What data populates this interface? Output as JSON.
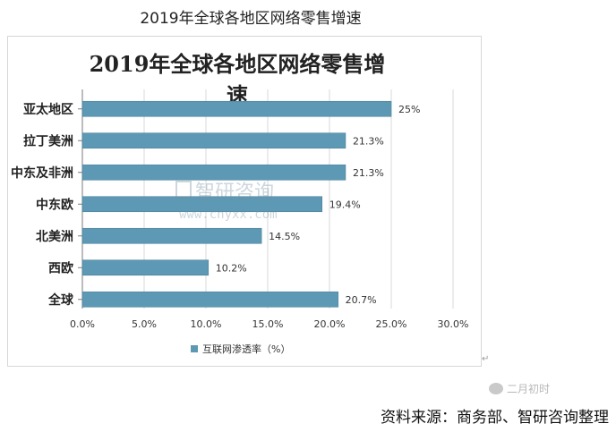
{
  "caption": "2019年全球各地区网络零售增速",
  "source_text": "资料来源：商务部、智研咨询整理",
  "watermark": {
    "brand": "智研咨询",
    "url": "www.chyxx.com"
  },
  "wechat_tag": "二月初时",
  "colors": {
    "bar": "#5d99b4",
    "bar_edge": "#4d8199",
    "grid": "#d9d9d9",
    "axis": "#7a7a7a"
  },
  "chart_data": {
    "type": "bar",
    "orientation": "horizontal",
    "title": "2019年全球各地区网络零售增速",
    "categories": [
      "亚太地区",
      "拉丁美洲",
      "中东及非洲",
      "中东欧",
      "北美洲",
      "西欧",
      "全球"
    ],
    "series": [
      {
        "name": "互联网渗透率（%）",
        "values": [
          25,
          21.3,
          21.3,
          19.4,
          14.5,
          10.2,
          20.7
        ],
        "labels": [
          "25%",
          "21.3%",
          "21.3%",
          "19.4%",
          "14.5%",
          "10.2%",
          "20.7%"
        ]
      }
    ],
    "xlim": [
      0,
      30
    ],
    "xticks": [
      "0.0%",
      "5.0%",
      "10.0%",
      "15.0%",
      "20.0%",
      "25.0%",
      "30.0%"
    ],
    "xtick_values": [
      0,
      5,
      10,
      15,
      20,
      25,
      30
    ],
    "grid": "vertical",
    "legend": "bottom-center"
  }
}
